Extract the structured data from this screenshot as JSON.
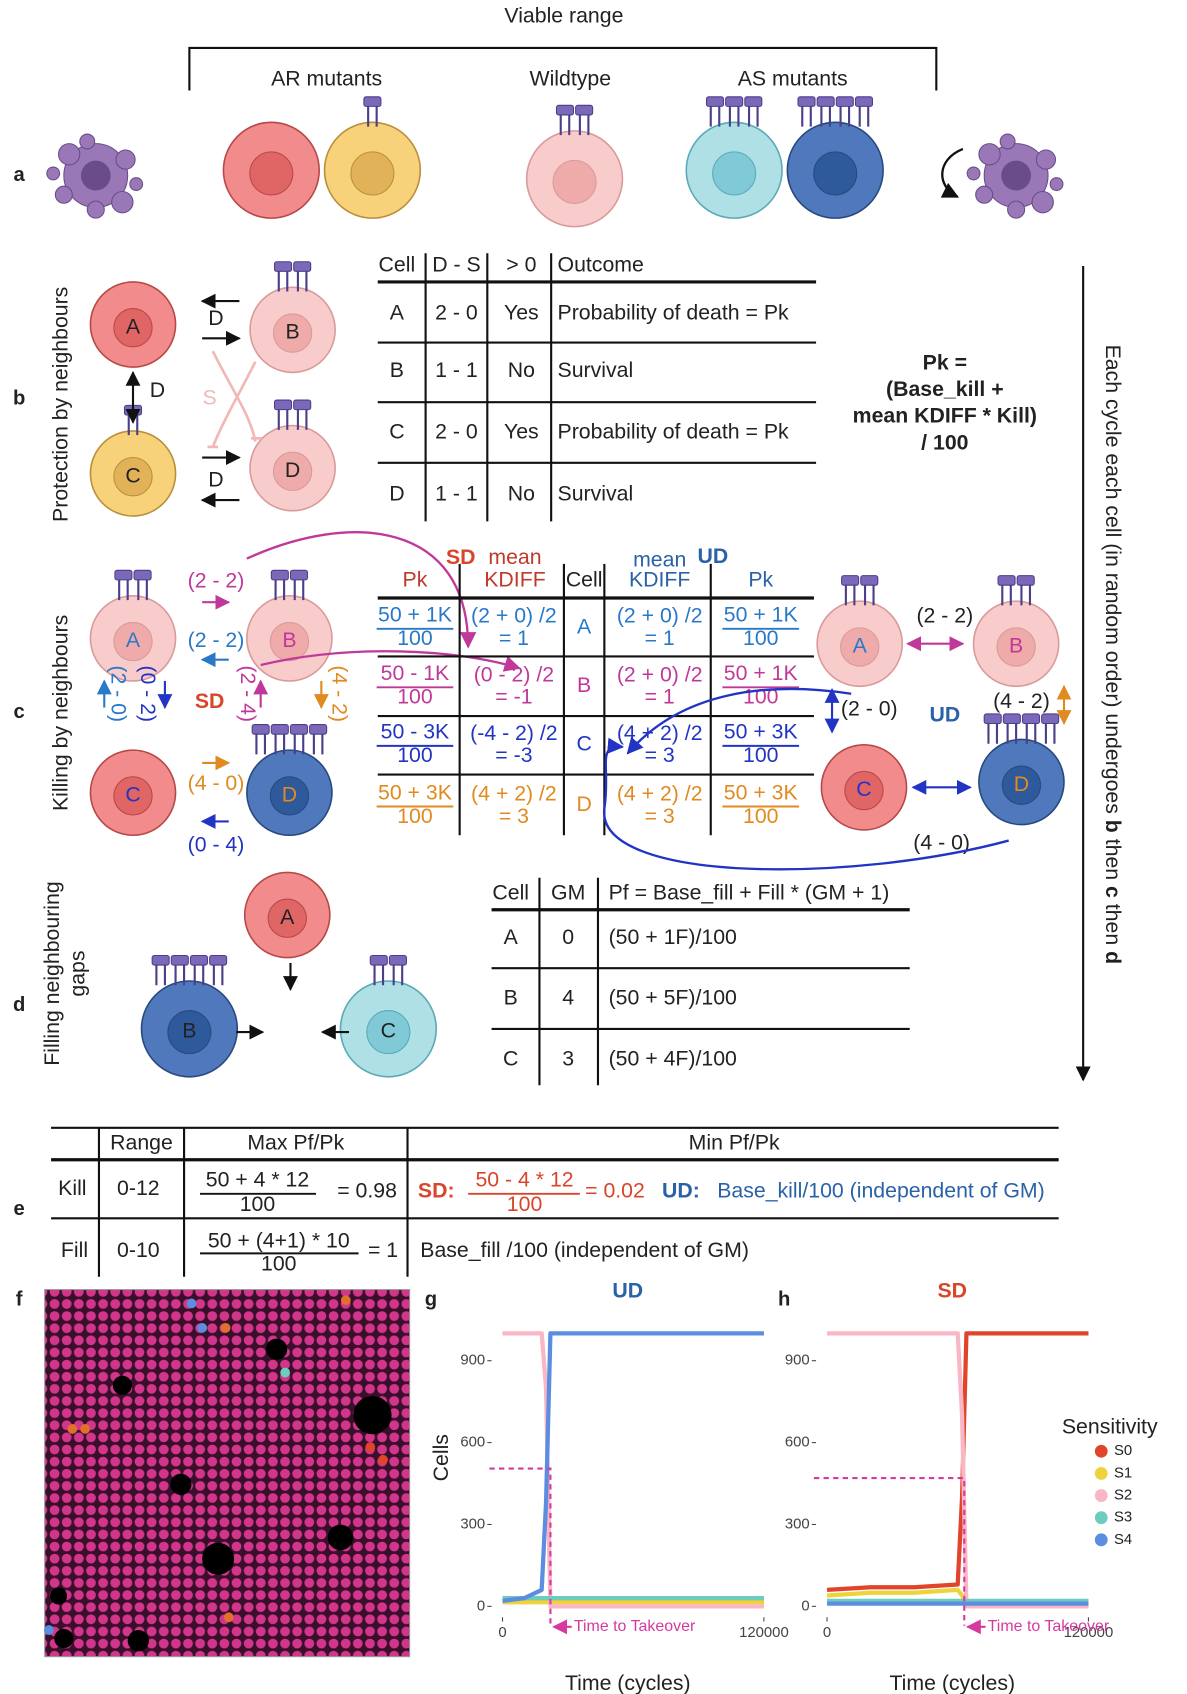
{
  "figure": {
    "panels": [
      "a",
      "b",
      "c",
      "d",
      "e",
      "f",
      "g",
      "h"
    ],
    "a": {
      "header": "Viable range",
      "groups": [
        "AR mutants",
        "Wildtype",
        "AS mutants"
      ]
    },
    "b": {
      "side_label": "Protection by neighbours",
      "cells": [
        "A",
        "B",
        "C",
        "D"
      ],
      "arrow_labels": [
        "D",
        "D",
        "D",
        "S"
      ],
      "table": {
        "header": [
          "Cell",
          "D - S",
          "> 0",
          "Outcome"
        ],
        "rows": [
          [
            "A",
            "2 - 0",
            "Yes",
            "Probability of death = Pk"
          ],
          [
            "B",
            "1 - 1",
            "No",
            "Survival"
          ],
          [
            "C",
            "2 - 0",
            "Yes",
            "Probability of death = Pk"
          ],
          [
            "D",
            "1 - 1",
            "No",
            "Survival"
          ]
        ]
      },
      "formula": [
        "Pk =",
        "(Base_kill +",
        "mean KDIFF * Kill)",
        "/ 100"
      ]
    },
    "cycle_note": [
      "Each cycle each cell (in random order) undergoes ",
      "b",
      " then ",
      "c",
      " then ",
      "d"
    ],
    "c": {
      "side_label": "Killing by neighbours",
      "sd_label": "SD",
      "ud_label": "UD",
      "left_cells": [
        "A",
        "B",
        "C",
        "D"
      ],
      "left_pairs": [
        "(2 - 2)",
        "(2 - 2)",
        "(2 - 0)",
        "(0 - 2)",
        "(2 - 4)",
        "(4 - 2)",
        "(4 - 0)",
        "(0 - 4)"
      ],
      "right_cells": [
        "A",
        "B",
        "C",
        "D"
      ],
      "right_pairs": [
        "(2 - 2)",
        "(2 - 0)",
        "(4 - 2)",
        "(4 - 0)"
      ],
      "table": {
        "header": {
          "sd": "SD",
          "sd_mean": "mean",
          "sd_pk": "Pk",
          "sd_kdiff": "KDIFF",
          "cell": "Cell",
          "ud_mean": "mean",
          "ud": "UD",
          "ud_kdiff": "KDIFF",
          "ud_pk": "Pk"
        },
        "rows": [
          {
            "color": "#2a78c8",
            "sd_pk": [
              "50 + 1K",
              "100"
            ],
            "sd_kdiff": [
              "(2 + 0) /2",
              "= 1"
            ],
            "cell": "A",
            "ud_kdiff": [
              "(2 + 0) /2",
              "= 1"
            ],
            "ud_pk": [
              "50 + 1K",
              "100"
            ]
          },
          {
            "color": "#c0399a",
            "sd_pk": [
              "50 - 1K",
              "100"
            ],
            "sd_kdiff": [
              "(0 - 2) /2",
              "= -1"
            ],
            "cell": "B",
            "ud_kdiff": [
              "(2 + 0) /2",
              "= 1"
            ],
            "ud_pk": [
              "50 + 1K",
              "100"
            ]
          },
          {
            "color": "#2234c4",
            "sd_pk": [
              "50 - 3K",
              "100"
            ],
            "sd_kdiff": [
              "(-4 - 2) /2",
              "= -3"
            ],
            "cell": "C",
            "ud_kdiff": [
              "(4 + 2) /2",
              "= 3"
            ],
            "ud_pk": [
              "50 + 3K",
              "100"
            ]
          },
          {
            "color": "#e08a20",
            "sd_pk": [
              "50 + 3K",
              "100"
            ],
            "sd_kdiff": [
              "(4 + 2) /2",
              "= 3"
            ],
            "cell": "D",
            "ud_kdiff": [
              "(4 + 2) /2",
              "= 3"
            ],
            "ud_pk": [
              "50 + 3K",
              "100"
            ]
          }
        ]
      }
    },
    "d": {
      "side_label": [
        "Filling neighbouring",
        "gaps"
      ],
      "cells": [
        "A",
        "B",
        "C"
      ],
      "table": {
        "header": [
          "Cell",
          "GM",
          "Pf = Base_fill + Fill * (GM + 1)"
        ],
        "rows": [
          [
            "A",
            "0",
            "(50 + 1F)/100"
          ],
          [
            "B",
            "4",
            "(50 + 5F)/100"
          ],
          [
            "C",
            "3",
            "(50 + 4F)/100"
          ]
        ]
      }
    },
    "e": {
      "header": [
        "Range",
        "Max Pf/Pk",
        "Min Pf/Pk"
      ],
      "kill": {
        "label": "Kill",
        "range": "0-12",
        "max_num": "50 + 4 * 12",
        "max_den": "100",
        "max_result": "= 0.98",
        "sd": "SD:",
        "sd_num": "50 - 4 * 12",
        "sd_den": "100",
        "sd_result": "= 0.02",
        "ud": "UD:",
        "ud_text": "Base_kill/100 (independent of GM)"
      },
      "fill": {
        "label": "Fill",
        "range": "0-10",
        "max_num": "50 + (4+1) * 10",
        "max_den": "100",
        "max_result": "= 1",
        "min_text": "Base_fill /100 (independent of GM)"
      }
    }
  },
  "chart_data": [
    {
      "type": "line",
      "title": "UD",
      "title_color": "#2a62a8",
      "ylabel": "Cells",
      "xlabel": "Time (cycles)",
      "xlim": [
        -6000,
        121000
      ],
      "ylim": [
        -40,
        1110
      ],
      "xticks": [
        0,
        120000
      ],
      "yticks": [
        0,
        300,
        600,
        900
      ],
      "x": [
        0,
        10000,
        18000,
        20000,
        22000,
        24000,
        60000,
        120000
      ],
      "series": [
        {
          "color": "#e0452b",
          "values": [
            20,
            20,
            20,
            20,
            20,
            20,
            20,
            20
          ]
        },
        {
          "color": "#f0d23c",
          "values": [
            15,
            15,
            15,
            15,
            15,
            15,
            15,
            15
          ]
        },
        {
          "color": "#f9b6c4",
          "values": [
            1000,
            1000,
            1000,
            800,
            0,
            0,
            0,
            0
          ]
        },
        {
          "color": "#6ccdbf",
          "values": [
            30,
            30,
            30,
            30,
            30,
            30,
            30,
            30
          ]
        },
        {
          "color": "#5b8de0",
          "values": [
            20,
            30,
            60,
            380,
            1000,
            1000,
            1000,
            1000
          ]
        }
      ],
      "takeover": {
        "x": 22000,
        "y": 505
      },
      "annotation": "Time to Takeover"
    },
    {
      "type": "line",
      "title": "SD",
      "title_color": "#d8452b",
      "xlabel": "Time (cycles)",
      "xlim": [
        -6000,
        121000
      ],
      "ylim": [
        -40,
        1110
      ],
      "xticks": [
        0,
        120000
      ],
      "yticks": [
        0,
        300,
        600,
        900
      ],
      "x": [
        0,
        20000,
        40000,
        60000,
        62000,
        64000,
        66000,
        120000
      ],
      "series": [
        {
          "name": "S0",
          "color": "#e0452b",
          "values": [
            60,
            70,
            70,
            80,
            400,
            1000,
            1000,
            1000
          ]
        },
        {
          "name": "S1",
          "color": "#f0d23c",
          "values": [
            40,
            50,
            50,
            60,
            40,
            10,
            10,
            10
          ]
        },
        {
          "name": "S2",
          "color": "#f9b6c4",
          "values": [
            1000,
            1000,
            1000,
            1000,
            700,
            0,
            0,
            0
          ]
        },
        {
          "name": "S3",
          "color": "#6ccdbf",
          "values": [
            20,
            20,
            20,
            20,
            20,
            20,
            20,
            20
          ]
        },
        {
          "name": "S4",
          "color": "#5b8de0",
          "values": [
            10,
            10,
            10,
            10,
            10,
            10,
            10,
            10
          ]
        }
      ],
      "takeover": {
        "x": 63000,
        "y": 470
      },
      "annotation": "Time to Takeover",
      "legend_title": "Sensitivity"
    }
  ]
}
